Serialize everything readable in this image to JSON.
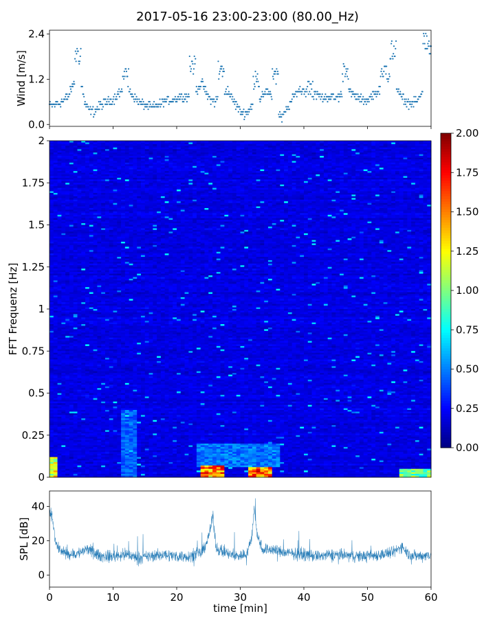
{
  "figure": {
    "title": "2017-05-16 23:00-23:00 (80.00_Hz)"
  },
  "chart_data": [
    {
      "type": "scatter",
      "name": "wind",
      "ylabel": "Wind [m/s]",
      "xlabel": "",
      "xlim": [
        0,
        60
      ],
      "ylim": [
        -0.05,
        2.5
      ],
      "yticks": [
        {
          "v": 0.0,
          "label": "0.0"
        },
        {
          "v": 1.2,
          "label": "1.2"
        },
        {
          "v": 2.4,
          "label": "2.4"
        }
      ],
      "xticks": [
        0,
        10,
        20,
        30,
        40,
        50,
        60
      ],
      "color": "#1f77b4",
      "quantum": 0.067,
      "envelope": [
        [
          0,
          0.5
        ],
        [
          1,
          0.55
        ],
        [
          2,
          0.6
        ],
        [
          3,
          0.75
        ],
        [
          4,
          1.2
        ],
        [
          4.5,
          1.8
        ],
        [
          5,
          1.1
        ],
        [
          5.5,
          0.6
        ],
        [
          6,
          0.4
        ],
        [
          7,
          0.35
        ],
        [
          8,
          0.5
        ],
        [
          9,
          0.6
        ],
        [
          10,
          0.65
        ],
        [
          11,
          0.85
        ],
        [
          12,
          1.0
        ],
        [
          13,
          0.8
        ],
        [
          14,
          0.6
        ],
        [
          15,
          0.5
        ],
        [
          16,
          0.45
        ],
        [
          17,
          0.5
        ],
        [
          18,
          0.6
        ],
        [
          19,
          0.65
        ],
        [
          20,
          0.7
        ],
        [
          21,
          0.75
        ],
        [
          22,
          0.75
        ],
        [
          23,
          0.9
        ],
        [
          24,
          1.1
        ],
        [
          25,
          0.7
        ],
        [
          26,
          0.6
        ],
        [
          27,
          0.8
        ],
        [
          28,
          0.9
        ],
        [
          29,
          0.6
        ],
        [
          30,
          0.35
        ],
        [
          31,
          0.3
        ],
        [
          32,
          0.55
        ],
        [
          33,
          0.7
        ],
        [
          34,
          0.9
        ],
        [
          35,
          0.7
        ],
        [
          36,
          0.3
        ],
        [
          36.5,
          0.15
        ],
        [
          37,
          0.3
        ],
        [
          38,
          0.6
        ],
        [
          39,
          0.9
        ],
        [
          40,
          0.9
        ],
        [
          41,
          0.7
        ],
        [
          42,
          0.8
        ],
        [
          43,
          0.7
        ],
        [
          44,
          0.75
        ],
        [
          45,
          0.7
        ],
        [
          46,
          0.8
        ],
        [
          47,
          0.9
        ],
        [
          48,
          0.75
        ],
        [
          49,
          0.65
        ],
        [
          50,
          0.65
        ],
        [
          51,
          0.8
        ],
        [
          52,
          0.9
        ],
        [
          53,
          1.2
        ],
        [
          54,
          1.3
        ],
        [
          55,
          0.8
        ],
        [
          56,
          0.6
        ],
        [
          57,
          0.55
        ],
        [
          58,
          0.65
        ],
        [
          59,
          1.0
        ],
        [
          59.5,
          1.8
        ],
        [
          60,
          2.0
        ]
      ],
      "peaks": [
        [
          4.5,
          2.1
        ],
        [
          12,
          1.5
        ],
        [
          22.5,
          1.8
        ],
        [
          27,
          1.7
        ],
        [
          32.5,
          1.4
        ],
        [
          35.5,
          1.5
        ],
        [
          41,
          1.2
        ],
        [
          46.5,
          1.6
        ],
        [
          52.5,
          1.6
        ],
        [
          54,
          2.2
        ],
        [
          59.2,
          2.4
        ],
        [
          59.8,
          2.0
        ]
      ]
    },
    {
      "type": "heatmap",
      "name": "spectrogram",
      "ylabel": "FFT Frequenz [Hz]",
      "xlabel": "",
      "xlim": [
        0,
        60
      ],
      "ylim": [
        0,
        2
      ],
      "yticks": [
        {
          "v": 0,
          "label": "0"
        },
        {
          "v": 0.25,
          "label": "0.25"
        },
        {
          "v": 0.5,
          "label": "0.5"
        },
        {
          "v": 0.75,
          "label": "0.75"
        },
        {
          "v": 1,
          "label": "1"
        },
        {
          "v": 1.25,
          "label": "1.25"
        },
        {
          "v": 1.5,
          "label": "1.5"
        },
        {
          "v": 1.75,
          "label": "1.75"
        },
        {
          "v": 2,
          "label": "2"
        }
      ],
      "colormap": "jet",
      "colorbar": {
        "vmin": 0,
        "vmax": 2,
        "ticks": [
          "0.00",
          "0.25",
          "0.50",
          "0.75",
          "1.00",
          "1.25",
          "1.50",
          "1.75",
          "2.00"
        ]
      },
      "base_level": 0.2,
      "hot_spots": [
        {
          "x0": 0,
          "x1": 1,
          "f0": 0,
          "f1": 0.12,
          "level": 1.5
        },
        {
          "x0": 11,
          "x1": 14,
          "f0": 0,
          "f1": 0.4,
          "level": 0.55
        },
        {
          "x0": 23.5,
          "x1": 27.5,
          "f0": 0,
          "f1": 0.07,
          "level": 1.9
        },
        {
          "x0": 31,
          "x1": 35,
          "f0": 0,
          "f1": 0.06,
          "level": 1.9
        },
        {
          "x0": 23,
          "x1": 36,
          "f0": 0.06,
          "f1": 0.2,
          "level": 0.6
        },
        {
          "x0": 55,
          "x1": 60,
          "f0": 0,
          "f1": 0.05,
          "level": 1.2
        }
      ]
    },
    {
      "type": "line",
      "name": "spl",
      "ylabel": "SPL [dB]",
      "xlabel": "time [min]",
      "xlim": [
        0,
        60
      ],
      "ylim": [
        -7,
        49
      ],
      "yticks": [
        {
          "v": 0,
          "label": "0"
        },
        {
          "v": 20,
          "label": "20"
        },
        {
          "v": 40,
          "label": "40"
        }
      ],
      "xticks": [
        0,
        10,
        20,
        30,
        40,
        50,
        60
      ],
      "color": "#1f77b4",
      "center": [
        [
          0,
          35
        ],
        [
          0.3,
          36
        ],
        [
          0.6,
          30
        ],
        [
          1,
          18
        ],
        [
          2,
          13
        ],
        [
          4,
          12
        ],
        [
          6,
          15
        ],
        [
          8,
          11
        ],
        [
          10,
          11
        ],
        [
          12,
          12
        ],
        [
          14,
          10
        ],
        [
          16,
          11
        ],
        [
          18,
          12
        ],
        [
          20,
          11
        ],
        [
          22,
          11
        ],
        [
          24,
          13
        ],
        [
          25,
          22
        ],
        [
          25.7,
          34
        ],
        [
          26.2,
          16
        ],
        [
          27,
          14
        ],
        [
          29,
          11
        ],
        [
          31,
          12
        ],
        [
          31.8,
          22
        ],
        [
          32.2,
          40
        ],
        [
          32.6,
          24
        ],
        [
          33.5,
          15
        ],
        [
          35,
          15
        ],
        [
          37,
          13
        ],
        [
          40,
          12
        ],
        [
          42,
          11
        ],
        [
          45,
          12
        ],
        [
          48,
          11
        ],
        [
          50,
          11
        ],
        [
          52,
          12
        ],
        [
          54,
          13
        ],
        [
          55.5,
          17
        ],
        [
          56.5,
          12
        ],
        [
          58,
          11
        ],
        [
          60,
          12
        ]
      ],
      "band": 5
    }
  ]
}
